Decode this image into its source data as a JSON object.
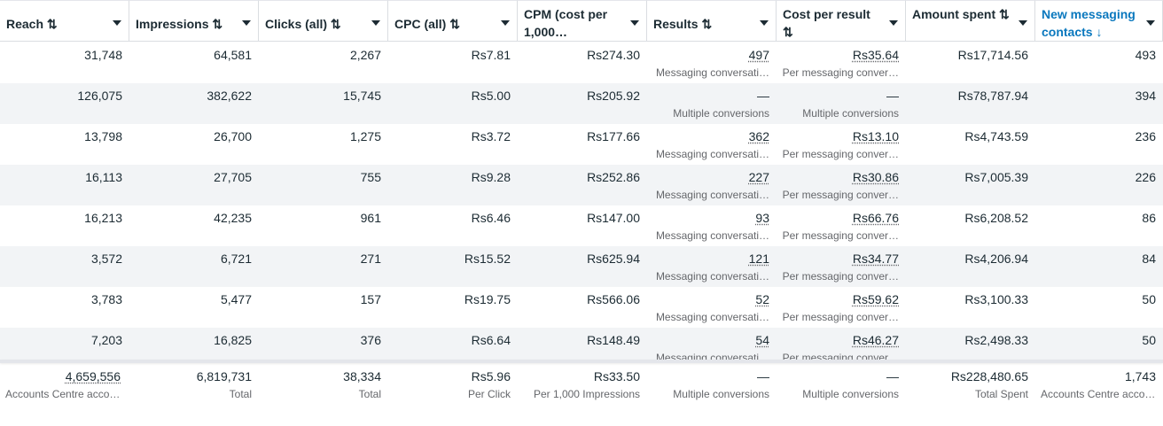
{
  "columns": [
    {
      "label": "Reach ⇅",
      "two_line": false
    },
    {
      "label": "Impressions ⇅",
      "two_line": false
    },
    {
      "label": "Clicks (all) ⇅",
      "two_line": false
    },
    {
      "label": "CPC (all) ⇅",
      "two_line": false
    },
    {
      "label": "CPM (cost per 1,000…",
      "two_line": true
    },
    {
      "label": "Results ⇅",
      "two_line": false
    },
    {
      "label": "Cost per result ⇅",
      "two_line": true
    },
    {
      "label": "Amount spent ⇅",
      "two_line": true
    },
    {
      "label": "New messaging contacts ↓",
      "two_line": true,
      "active": true
    }
  ],
  "rows": [
    {
      "reach": "31,748",
      "impressions": "64,581",
      "clicks": "2,267",
      "cpc": "Rs7.81",
      "cpm": "Rs274.30",
      "results": "497",
      "results_sub": "Messaging conversati…",
      "cpr": "Rs35.64",
      "cpr_sub": "Per messaging conver…",
      "spent": "Rs17,714.56",
      "contacts": "493"
    },
    {
      "reach": "126,075",
      "impressions": "382,622",
      "clicks": "15,745",
      "cpc": "Rs5.00",
      "cpm": "Rs205.92",
      "results": "—",
      "results_sub": "Multiple conversions",
      "cpr": "—",
      "cpr_sub": "Multiple conversions",
      "spent": "Rs78,787.94",
      "contacts": "394"
    },
    {
      "reach": "13,798",
      "impressions": "26,700",
      "clicks": "1,275",
      "cpc": "Rs3.72",
      "cpm": "Rs177.66",
      "results": "362",
      "results_sub": "Messaging conversati…",
      "cpr": "Rs13.10",
      "cpr_sub": "Per messaging conver…",
      "spent": "Rs4,743.59",
      "contacts": "236"
    },
    {
      "reach": "16,113",
      "impressions": "27,705",
      "clicks": "755",
      "cpc": "Rs9.28",
      "cpm": "Rs252.86",
      "results": "227",
      "results_sub": "Messaging conversati…",
      "cpr": "Rs30.86",
      "cpr_sub": "Per messaging conver…",
      "spent": "Rs7,005.39",
      "contacts": "226"
    },
    {
      "reach": "16,213",
      "impressions": "42,235",
      "clicks": "961",
      "cpc": "Rs6.46",
      "cpm": "Rs147.00",
      "results": "93",
      "results_sub": "Messaging conversati…",
      "cpr": "Rs66.76",
      "cpr_sub": "Per messaging conver…",
      "spent": "Rs6,208.52",
      "contacts": "86"
    },
    {
      "reach": "3,572",
      "impressions": "6,721",
      "clicks": "271",
      "cpc": "Rs15.52",
      "cpm": "Rs625.94",
      "results": "121",
      "results_sub": "Messaging conversati…",
      "cpr": "Rs34.77",
      "cpr_sub": "Per messaging conver…",
      "spent": "Rs4,206.94",
      "contacts": "84"
    },
    {
      "reach": "3,783",
      "impressions": "5,477",
      "clicks": "157",
      "cpc": "Rs19.75",
      "cpm": "Rs566.06",
      "results": "52",
      "results_sub": "Messaging conversati…",
      "cpr": "Rs59.62",
      "cpr_sub": "Per messaging conver…",
      "spent": "Rs3,100.33",
      "contacts": "50"
    },
    {
      "reach": "7,203",
      "impressions": "16,825",
      "clicks": "376",
      "cpc": "Rs6.64",
      "cpm": "Rs148.49",
      "results": "54",
      "results_sub": "Messaging conversati…",
      "cpr": "Rs46.27",
      "cpr_sub": "Per messaging conver…",
      "spent": "Rs2,498.33",
      "contacts": "50"
    }
  ],
  "totals": [
    {
      "value": "4,659,556",
      "sub": "Accounts Centre accou…"
    },
    {
      "value": "6,819,731",
      "sub": "Total"
    },
    {
      "value": "38,334",
      "sub": "Total"
    },
    {
      "value": "Rs5.96",
      "sub": "Per Click"
    },
    {
      "value": "Rs33.50",
      "sub": "Per 1,000 Impressions"
    },
    {
      "value": "—",
      "sub": "Multiple conversions"
    },
    {
      "value": "—",
      "sub": "Multiple conversions"
    },
    {
      "value": "Rs228,480.65",
      "sub": "Total Spent"
    },
    {
      "value": "1,743",
      "sub": "Accounts Centre accou…"
    }
  ],
  "colors": {
    "accent": "#0a78be",
    "row_alt": "#f2f4f6",
    "text": "#1c2b33",
    "muted": "#65676b"
  }
}
